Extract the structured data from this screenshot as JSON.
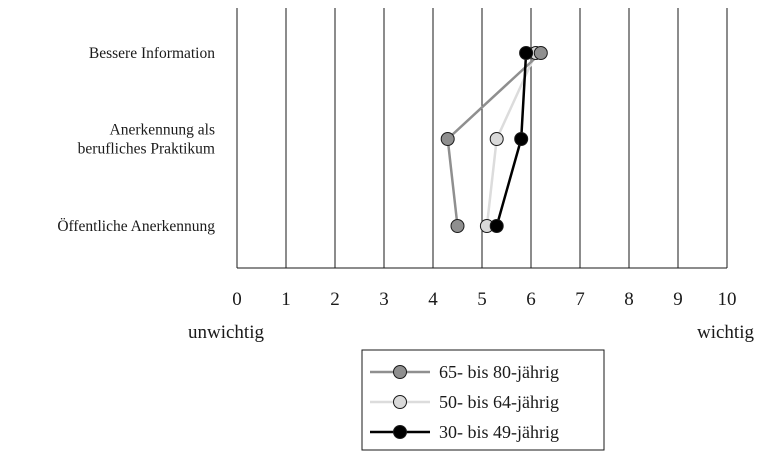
{
  "chart_data": {
    "type": "line",
    "orientation": "horizontal",
    "categories": [
      "Bessere Information",
      "Anerkennung als\nberufliches Praktikum",
      "Öffentliche Anerkennung"
    ],
    "category_lines": [
      [
        "Bessere Information"
      ],
      [
        "Anerkennung als",
        "berufliches Praktikum"
      ],
      [
        "Öffentliche Anerkennung"
      ]
    ],
    "xlim": [
      0,
      10
    ],
    "xticks": [
      "0",
      "1",
      "2",
      "3",
      "4",
      "5",
      "6",
      "7",
      "8",
      "9",
      "10"
    ],
    "x_left_label": "unwichtig",
    "x_right_label": "wichtig",
    "grid": "vertical",
    "legend": "bottom-center",
    "series": [
      {
        "name": "65- bis 80-jährig",
        "values": [
          6.2,
          4.3,
          4.5
        ],
        "line_color": "#8f8f8f",
        "marker_color": "#8f8f8f"
      },
      {
        "name": "50- bis 64-jährig",
        "values": [
          6.1,
          5.3,
          5.1
        ],
        "line_color": "#dcdcdc",
        "marker_color": "#d9d9d9"
      },
      {
        "name": "30- bis 49-jährig",
        "values": [
          5.9,
          5.8,
          5.3
        ],
        "line_color": "#000000",
        "marker_color": "#000000"
      }
    ]
  }
}
